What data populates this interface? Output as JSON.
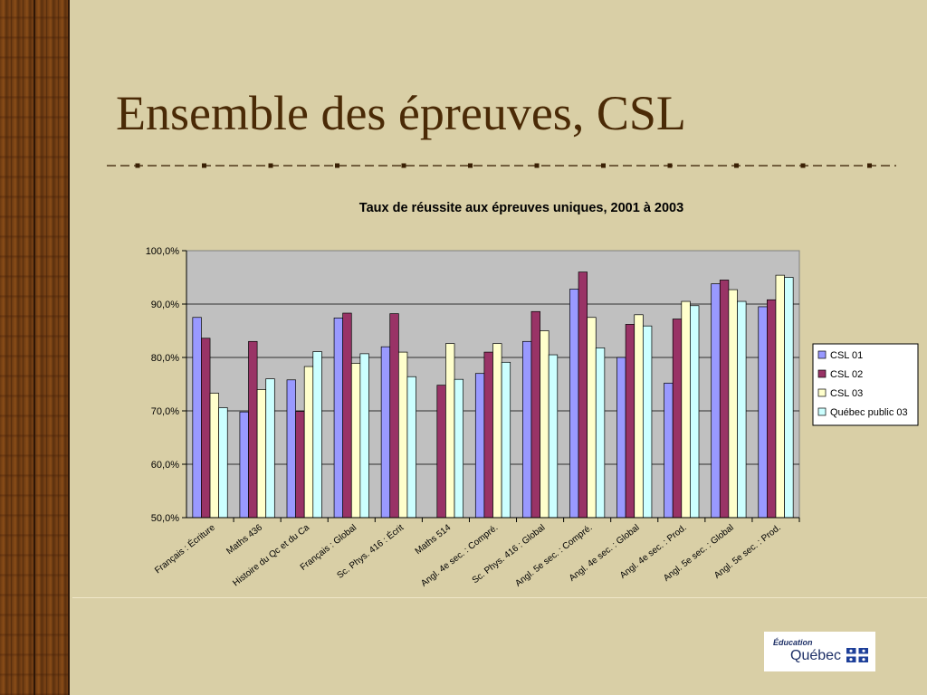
{
  "slide": {
    "title": "Ensemble des épreuves, CSL",
    "logo": {
      "line1": "Éducation",
      "line2": "Québec"
    }
  },
  "colors": {
    "background": "#d9cfa6",
    "title": "#4a2a06",
    "plot_area": "#c0c0c0",
    "series": [
      "#9999ff",
      "#993366",
      "#ffffcc",
      "#ccffff"
    ]
  },
  "chart_data": {
    "type": "bar",
    "title": "Taux de réussite aux épreuves uniques, 2001 à 2003",
    "xlabel": "",
    "ylabel": "",
    "ylim": [
      50,
      100
    ],
    "yticks": [
      "50,0%",
      "60,0%",
      "70,0%",
      "80,0%",
      "90,0%",
      "100,0%"
    ],
    "grid": true,
    "legend": "right",
    "categories": [
      "Français : Écriture",
      "Maths 436",
      "Histoire du Qc et du Ca",
      "Français : Global",
      "Sc. Phys. 416 : Écrit",
      "Maths 514",
      "Angl. 4e sec. : Compré.",
      "Sc. Phys. 416 : Global",
      "Angl. 5e sec. : Compré.",
      "Angl. 4e sec. : Global",
      "Angl. 4e sec. : Prod.",
      "Angl. 5e sec. : Global",
      "Angl. 5e sec. : Prod."
    ],
    "series": [
      {
        "name": "CSL 01",
        "values": [
          87.5,
          69.8,
          75.8,
          87.4,
          82.0,
          null,
          77.0,
          83.0,
          92.8,
          80.0,
          75.2,
          93.8,
          89.5
        ]
      },
      {
        "name": "CSL 02",
        "values": [
          83.6,
          83.0,
          69.9,
          88.3,
          88.2,
          74.8,
          81.0,
          88.6,
          96.0,
          86.2,
          87.2,
          94.5,
          90.8
        ]
      },
      {
        "name": "CSL 03",
        "values": [
          73.3,
          74.0,
          78.3,
          78.9,
          81.0,
          82.6,
          82.6,
          85.0,
          87.5,
          88.0,
          90.5,
          92.7,
          95.4
        ]
      },
      {
        "name": "Québec public 03",
        "values": [
          70.6,
          76.0,
          81.1,
          80.7,
          76.4,
          75.9,
          79.1,
          80.5,
          81.8,
          85.9,
          89.7,
          90.5,
          95.0
        ]
      }
    ]
  }
}
